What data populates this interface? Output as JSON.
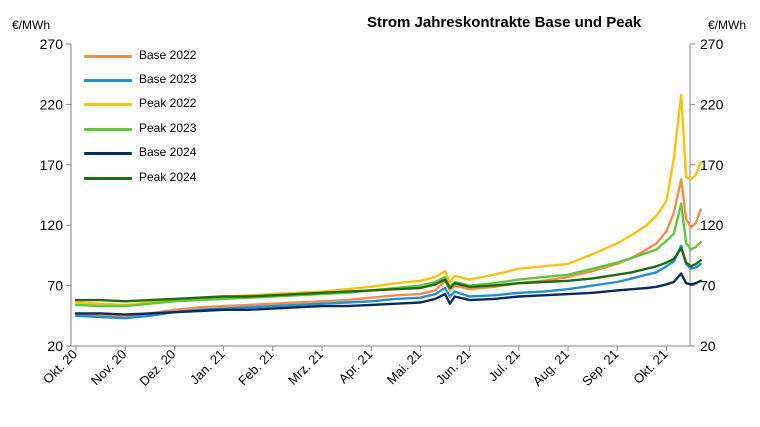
{
  "chart_data": {
    "type": "line",
    "title": "Strom Jahreskontrakte Base und Peak",
    "unit_left": "€/MWh",
    "unit_right": "€/MWh",
    "ylim": [
      20,
      270
    ],
    "yticks": [
      "270",
      "220",
      "170",
      "120",
      "70",
      "20"
    ],
    "ytick_values": [
      270,
      220,
      170,
      120,
      70,
      20
    ],
    "x_month_labels": [
      "Okt. 20",
      "Nov. 20",
      "Dez. 20",
      "Jan. 21",
      "Feb. 21",
      "Mrz. 21",
      "Apr. 21",
      "Mai. 21",
      "Jun. 21",
      "Jul. 21",
      "Aug. 21",
      "Sep. 21",
      "Okt. 21"
    ],
    "x_month_index": [
      0,
      1,
      2,
      3,
      4,
      5,
      6,
      7,
      8,
      9,
      10,
      11,
      12
    ],
    "xlim": [
      0,
      13.3
    ],
    "grid": false,
    "legend_position": "top-left",
    "series": [
      {
        "name": "Base 2022",
        "color": "#f28e4c",
        "x": [
          0,
          0.5,
          1,
          1.5,
          2,
          2.5,
          3,
          3.5,
          4,
          4.5,
          5,
          5.5,
          6,
          6.5,
          7,
          7.3,
          7.5,
          7.6,
          7.7,
          8,
          8.5,
          9,
          9.5,
          10,
          10.5,
          11,
          11.3,
          11.6,
          11.8,
          12,
          12.15,
          12.3,
          12.4,
          12.5,
          12.6,
          12.7
        ],
        "y": [
          47,
          45,
          44,
          47,
          50,
          52,
          53,
          54,
          55,
          56,
          57,
          58,
          60,
          62,
          63,
          66,
          74,
          66,
          70,
          67,
          69,
          72,
          74,
          77,
          82,
          88,
          93,
          100,
          105,
          115,
          130,
          158,
          125,
          118,
          122,
          133
        ]
      },
      {
        "name": "Base 2023",
        "color": "#1f8fd6",
        "x": [
          0,
          0.5,
          1,
          1.5,
          2,
          2.5,
          3,
          3.5,
          4,
          4.5,
          5,
          5.5,
          6,
          6.5,
          7,
          7.3,
          7.5,
          7.6,
          7.7,
          8,
          8.5,
          9,
          9.5,
          10,
          10.5,
          11,
          11.3,
          11.6,
          11.8,
          12,
          12.15,
          12.3,
          12.4,
          12.5,
          12.6,
          12.7
        ],
        "y": [
          45,
          44,
          43,
          45,
          48,
          50,
          51,
          52,
          53,
          54,
          55,
          56,
          57,
          59,
          60,
          63,
          68,
          61,
          65,
          61,
          62,
          64,
          65,
          67,
          70,
          73,
          76,
          79,
          81,
          86,
          90,
          103,
          88,
          84,
          85,
          88
        ]
      },
      {
        "name": "Peak 2022",
        "color": "#f9c20f",
        "x": [
          0,
          0.5,
          1,
          1.5,
          2,
          2.5,
          3,
          3.5,
          4,
          4.5,
          5,
          5.5,
          6,
          6.5,
          7,
          7.3,
          7.5,
          7.6,
          7.7,
          8,
          8.5,
          9,
          9.5,
          10,
          10.5,
          11,
          11.3,
          11.6,
          11.8,
          12,
          12.15,
          12.3,
          12.4,
          12.5,
          12.6,
          12.7
        ],
        "y": [
          56,
          55,
          54,
          56,
          58,
          60,
          61,
          62,
          63,
          64,
          65,
          67,
          69,
          72,
          74,
          77,
          82,
          73,
          78,
          75,
          79,
          84,
          86,
          88,
          96,
          105,
          112,
          120,
          128,
          140,
          175,
          228,
          160,
          158,
          162,
          172
        ]
      },
      {
        "name": "Peak 2023",
        "color": "#5ec83a",
        "x": [
          0,
          0.5,
          1,
          1.5,
          2,
          2.5,
          3,
          3.5,
          4,
          4.5,
          5,
          5.5,
          6,
          6.5,
          7,
          7.3,
          7.5,
          7.6,
          7.7,
          8,
          8.5,
          9,
          9.5,
          10,
          10.5,
          11,
          11.3,
          11.6,
          11.8,
          12,
          12.15,
          12.3,
          12.4,
          12.5,
          12.6,
          12.7
        ],
        "y": [
          54,
          53,
          53,
          55,
          57,
          58,
          59,
          60,
          61,
          62,
          63,
          64,
          66,
          68,
          70,
          73,
          77,
          69,
          73,
          70,
          72,
          75,
          77,
          79,
          84,
          89,
          93,
          97,
          100,
          107,
          113,
          138,
          105,
          100,
          102,
          106
        ]
      },
      {
        "name": "Base 2024",
        "color": "#0b2a5c",
        "x": [
          0,
          0.5,
          1,
          1.5,
          2,
          2.5,
          3,
          3.5,
          4,
          4.5,
          5,
          5.5,
          6,
          6.5,
          7,
          7.3,
          7.5,
          7.6,
          7.7,
          8,
          8.5,
          9,
          9.5,
          10,
          10.5,
          11,
          11.3,
          11.6,
          11.8,
          12,
          12.15,
          12.3,
          12.4,
          12.5,
          12.6,
          12.7
        ],
        "y": [
          47,
          47,
          46,
          47,
          48,
          49,
          50,
          50,
          51,
          52,
          53,
          53,
          54,
          55,
          56,
          59,
          63,
          55,
          61,
          58,
          59,
          61,
          62,
          63,
          64,
          66,
          67,
          68,
          69,
          71,
          73,
          80,
          72,
          71,
          72,
          74
        ]
      },
      {
        "name": "Peak 2024",
        "color": "#1e6b12",
        "x": [
          0,
          0.5,
          1,
          1.5,
          2,
          2.5,
          3,
          3.5,
          4,
          4.5,
          5,
          5.5,
          6,
          6.5,
          7,
          7.3,
          7.5,
          7.6,
          7.7,
          8,
          8.5,
          9,
          9.5,
          10,
          10.5,
          11,
          11.3,
          11.6,
          11.8,
          12,
          12.15,
          12.3,
          12.4,
          12.5,
          12.6,
          12.7
        ],
        "y": [
          58,
          58,
          57,
          58,
          59,
          60,
          61,
          61,
          62,
          63,
          64,
          65,
          66,
          67,
          68,
          71,
          75,
          68,
          72,
          69,
          70,
          72,
          73,
          74,
          76,
          79,
          81,
          84,
          86,
          89,
          92,
          101,
          89,
          86,
          88,
          91
        ]
      }
    ]
  }
}
